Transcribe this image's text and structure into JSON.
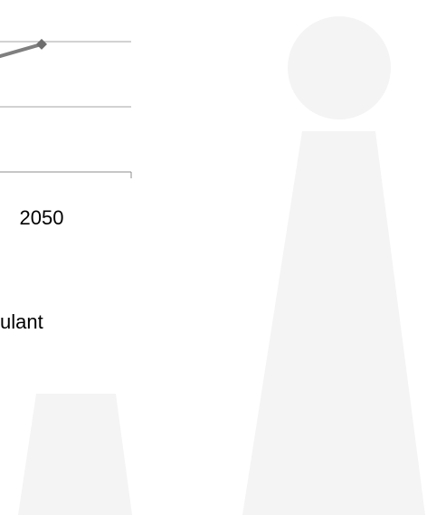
{
  "chart_data": {
    "type": "line",
    "categories": [
      null,
      "2050"
    ],
    "series": [
      {
        "name": "ulant",
        "color": "#7f7f7f",
        "marker_color": "#6e6e6e",
        "values": [
          13,
          19.6
        ]
      }
    ],
    "ylim": [
      0,
      25
    ],
    "yticks": [
      0,
      10,
      20
    ],
    "grid": true
  }
}
